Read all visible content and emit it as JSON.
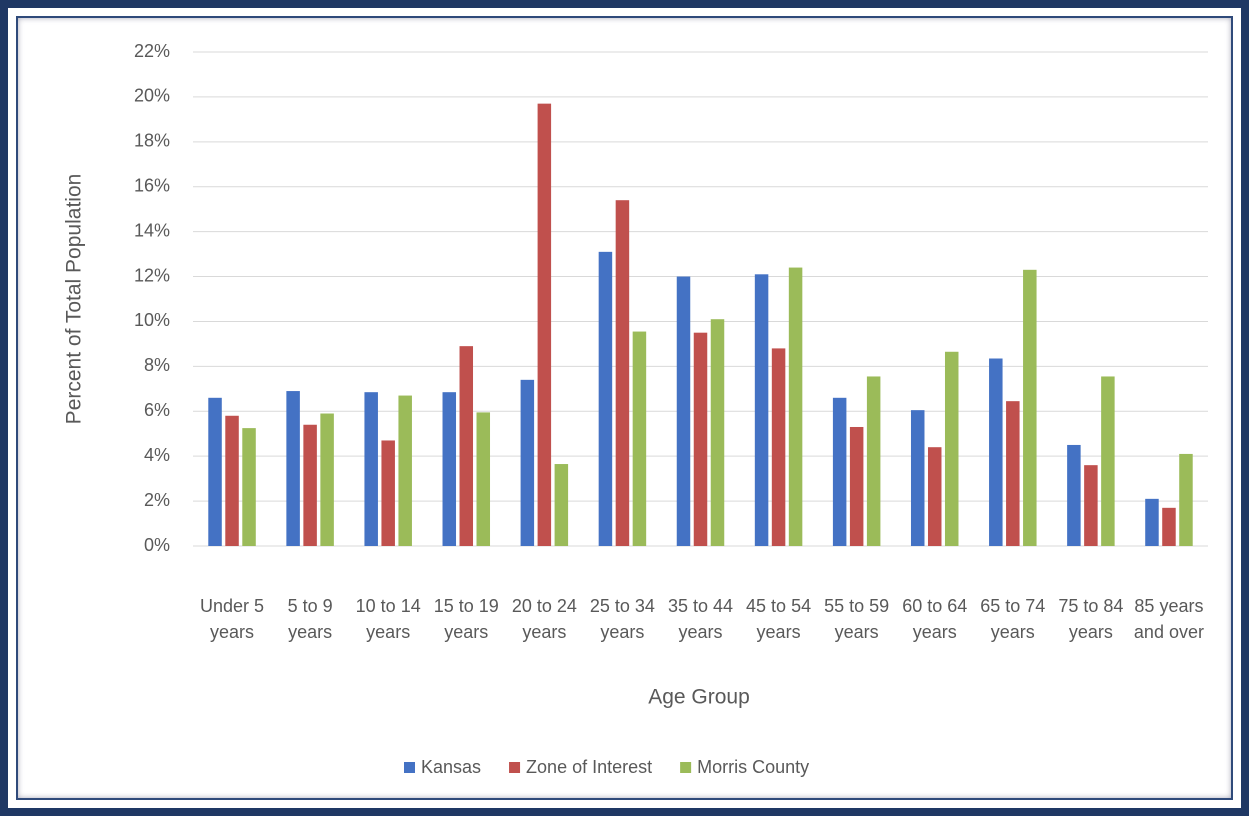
{
  "chart_data": {
    "type": "bar",
    "categories": [
      "Under 5 years",
      "5 to 9 years",
      "10 to 14 years",
      "15 to 19 years",
      "20 to 24 years",
      "25 to 34 years",
      "35 to 44 years",
      "45 to 54 years",
      "55 to 59 years",
      "60 to 64 years",
      "65 to 74 years",
      "75 to 84 years",
      "85 years and over"
    ],
    "series": [
      {
        "name": "Kansas",
        "color": "#4472c4",
        "values": [
          6.6,
          6.9,
          6.85,
          6.85,
          7.4,
          13.1,
          12.0,
          12.1,
          6.6,
          6.05,
          8.35,
          4.5,
          2.1
        ]
      },
      {
        "name": "Zone of Interest",
        "color": "#c0504d",
        "values": [
          5.8,
          5.4,
          4.7,
          8.9,
          19.7,
          15.4,
          9.5,
          8.8,
          5.3,
          4.4,
          6.45,
          3.6,
          1.7
        ]
      },
      {
        "name": "Morris County",
        "color": "#9bbb59",
        "values": [
          5.25,
          5.9,
          6.7,
          5.95,
          3.65,
          9.55,
          10.1,
          12.4,
          7.55,
          8.65,
          12.3,
          7.55,
          4.1
        ]
      }
    ],
    "xlabel": "Age Group",
    "ylabel": "Percent of Total Population",
    "ylim": [
      0,
      22
    ],
    "yticks": [
      {
        "value": 0,
        "label": "0%"
      },
      {
        "value": 2,
        "label": "2%"
      },
      {
        "value": 4,
        "label": "4%"
      },
      {
        "value": 6,
        "label": "6%"
      },
      {
        "value": 8,
        "label": "8%"
      },
      {
        "value": 10,
        "label": "10%"
      },
      {
        "value": 12,
        "label": "12%"
      },
      {
        "value": 14,
        "label": "14%"
      },
      {
        "value": 16,
        "label": "16%"
      },
      {
        "value": 18,
        "label": "18%"
      },
      {
        "value": 20,
        "label": "20%"
      },
      {
        "value": 22,
        "label": "22%"
      }
    ],
    "grid": true,
    "legend": "bottom"
  }
}
